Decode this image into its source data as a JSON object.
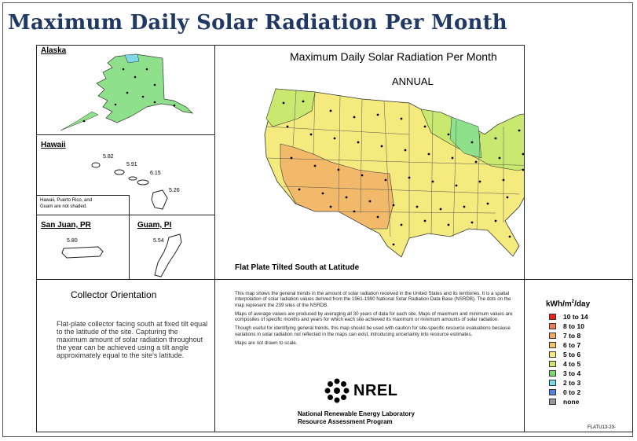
{
  "page": {
    "title": "Maximum Daily Solar Radiation Per Month",
    "code": "FLATU13-23-"
  },
  "map": {
    "title": "Maximum Daily Solar Radiation Per Month",
    "subtitle": "ANNUAL",
    "tilt_note": "Flat Plate Tilted South at Latitude"
  },
  "insets": {
    "alaska": {
      "label": "Alaska"
    },
    "hawaii": {
      "label": "Hawaii",
      "values": [
        "5.82",
        "5.91",
        "6.15",
        "5.26"
      ],
      "note_line1": "Hawaii, Puerto Rico, and",
      "note_line2": "Guam are not shaded."
    },
    "san_juan": {
      "label": "San Juan, PR",
      "value": "5.80"
    },
    "guam": {
      "label": "Guam, PI",
      "value": "5.54"
    }
  },
  "collector": {
    "title": "Collector Orientation",
    "text": "Flat-plate collector facing south at fixed tilt equal to the latitude of the site.  Capturing the maximum amount of solar radiation throughout the year can be achieved using a tilt angle approximately equal to the site's latitude."
  },
  "description": {
    "p1": "This map shows the general trends in the amount of solar radiation received in the United States and its territories.  It is a spatial interpolation of solar radiation values derived from the 1961-1990 National Solar Radiation Data Base (NSRDB).  The dots on the map represent the 239 sites of the NSRDB.",
    "p2": "Maps of average values are produced by averaging all 30 years of data for each site. Maps of maximum and minimum values are composites of specific months and years for which each site achieved its maximum or minimum amounts of solar radiation.",
    "p3": "Though useful for identifying general trends, this map should be used with caution for site-specific resource evaluations because variations in solar radiation not reflected in the maps can exist, introducing uncertainty into resource estimates.",
    "p4": "Maps are not drawn to scale."
  },
  "organization": {
    "logo_text": "NREL",
    "line1": "National Renewable Energy Laboratory",
    "line2": "Resource Assessment Program"
  },
  "legend": {
    "title_main": "kWh/m",
    "title_sup": "2",
    "title_tail": "/day",
    "items": [
      {
        "label": "10  to  14",
        "color": "#e8211d"
      },
      {
        "label": "8  to  10",
        "color": "#f27a55"
      },
      {
        "label": "7  to    8",
        "color": "#f2a868"
      },
      {
        "label": "6  to    7",
        "color": "#f7c36a"
      },
      {
        "label": "5  to    6",
        "color": "#f5ea7d"
      },
      {
        "label": "4  to    5",
        "color": "#c8e870"
      },
      {
        "label": "3  to    4",
        "color": "#7fd66f"
      },
      {
        "label": "2  to    3",
        "color": "#7fd7ea"
      },
      {
        "label": "0  to    2",
        "color": "#5b7fe0"
      },
      {
        "label": "none",
        "color": "#8f9aa5"
      }
    ]
  }
}
